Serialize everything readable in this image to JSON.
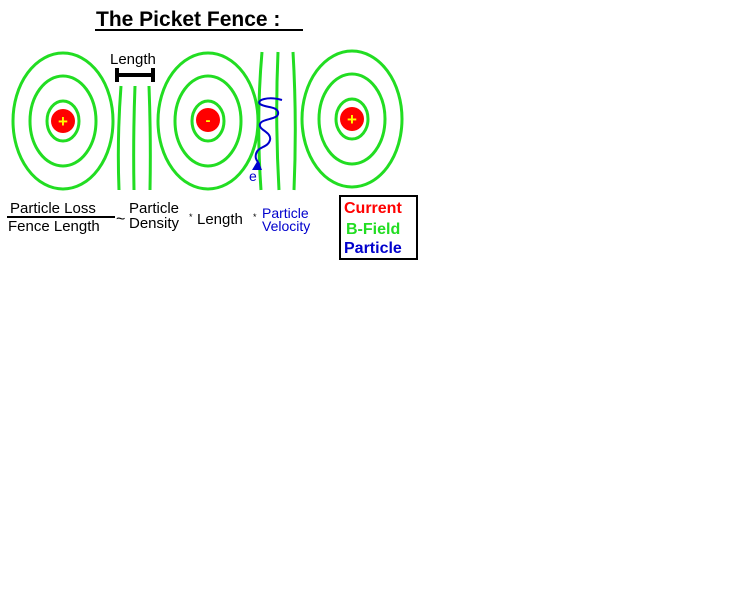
{
  "title": "The Picket Fence :",
  "length_label": "Length",
  "charges": [
    "+",
    "-",
    "+"
  ],
  "particle_label": "e",
  "formula": {
    "numerator": "Particle Loss",
    "denominator": "Fence Length",
    "tilde": "~",
    "term1_line1": "Particle",
    "term1_line2": "Density",
    "times": "*",
    "term2": "Length",
    "term3_line1": "Particle",
    "term3_line2": "Velocity"
  },
  "legend": {
    "current": "Current",
    "bfield": "B-Field",
    "particle": "Particle"
  },
  "colors": {
    "current": "#ff0000",
    "bfield": "#22dd22",
    "particle": "#0000cc",
    "charge_sign": "#ffff00",
    "text": "#000000"
  }
}
